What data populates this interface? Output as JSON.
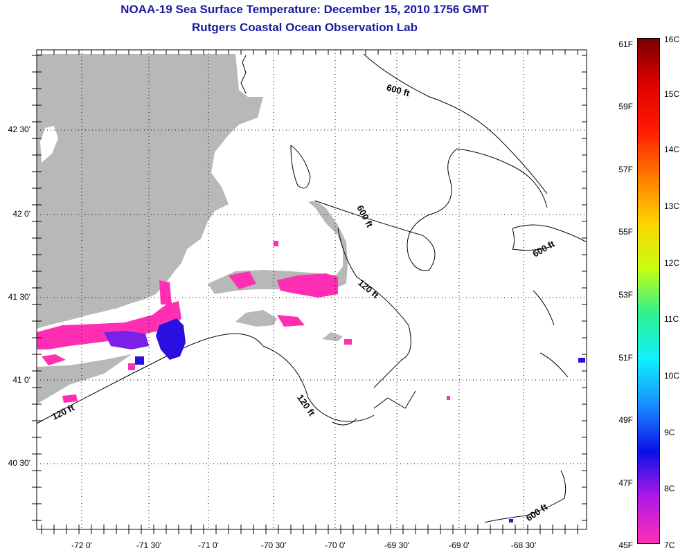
{
  "title": {
    "line1": "NOAA-19 Sea Surface Temperature:  December 15, 2010 1756 GMT",
    "line2": "Rutgers Coastal Ocean Observation Lab"
  },
  "lat_labels": [
    "42 30'",
    "42 0'",
    "41 30'",
    "41 0'",
    "40 30'"
  ],
  "lon_labels": [
    "-72 0'",
    "-71 30'",
    "-71 0'",
    "-70 30'",
    "-70 0'",
    "-69 30'",
    "-69 0'",
    "-68 30'"
  ],
  "depth_labels": [
    "600 ft",
    "600 ft",
    "600 ft",
    "120 ft",
    "120 ft",
    "120 ft",
    "600 ft"
  ],
  "colorbar": {
    "fahrenheit": [
      "61F",
      "59F",
      "57F",
      "55F",
      "53F",
      "51F",
      "49F",
      "47F",
      "45F"
    ],
    "celsius": [
      "16C",
      "15C",
      "14C",
      "13C",
      "12C",
      "11C",
      "10C",
      "9C",
      "8C",
      "7C"
    ],
    "colors": [
      "#ff2fb4",
      "#b018e8",
      "#0a10e6",
      "#1a8cff",
      "#10f0ff",
      "#2ff090",
      "#c8ff10",
      "#ffd200",
      "#ff7a00",
      "#ff1a00",
      "#e00000",
      "#7a0000"
    ]
  },
  "colors": {
    "title": "#1a1aa0",
    "land": "#b8b8b8",
    "sst_warm": "#ff2fb4",
    "sst_cool": "#2a10e0"
  }
}
